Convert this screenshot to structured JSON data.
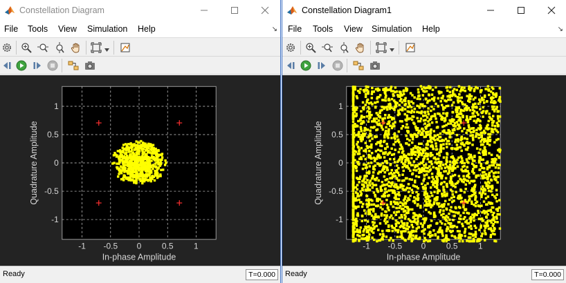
{
  "windows": [
    {
      "title": "Constellation Diagram",
      "menu": [
        "File",
        "Tools",
        "View",
        "Simulation",
        "Help"
      ],
      "status": "Ready",
      "sim_time": "T=0.000",
      "plot": {
        "xlabel": "In-phase Amplitude",
        "ylabel": "Quadrature Amplitude",
        "xticks": [
          "-1",
          "-0.5",
          "0",
          "0.5",
          "1"
        ],
        "yticks": [
          "1",
          "0.5",
          "0",
          "-0.5",
          "-1"
        ]
      }
    },
    {
      "title": "Constellation Diagram1",
      "menu": [
        "File",
        "Tools",
        "View",
        "Simulation",
        "Help"
      ],
      "status": "Ready",
      "sim_time": "T=0.000",
      "plot": {
        "xlabel": "In-phase Amplitude",
        "ylabel": "Quadrature Amplitude",
        "xticks": [
          "-1",
          "-0.5",
          "0",
          "0.5",
          "1"
        ],
        "yticks": [
          "1",
          "0.5",
          "0",
          "-0.5",
          "-1"
        ]
      }
    }
  ],
  "colors": {
    "plot_background": "#232323",
    "axes_background": "#000000",
    "grid": "#d8d8d8",
    "signal": "#ffff00",
    "reference_marker": "#ff3030"
  },
  "icons": {
    "app": "matlab-logo-icon",
    "window_controls": [
      "minimize-icon",
      "maximize-icon",
      "close-icon"
    ],
    "toolbar_row1": [
      "settings-gear-icon",
      "zoom-in-icon",
      "zoom-x-icon",
      "zoom-y-icon",
      "pan-hand-icon",
      "scale-axes-icon",
      "style-icon"
    ],
    "toolbar_row2": [
      "step-back-icon",
      "run-icon",
      "step-forward-icon",
      "stop-icon",
      "highlight-simulink-block-icon",
      "snapshot-icon"
    ]
  },
  "chart_data": [
    {
      "type": "scatter",
      "title": "",
      "xlabel": "In-phase Amplitude",
      "ylabel": "Quadrature Amplitude",
      "xlim": [
        -1.35,
        1.35
      ],
      "ylim": [
        -1.35,
        1.35
      ],
      "grid": true,
      "reference_points": [
        [
          -0.707,
          0.707
        ],
        [
          0.707,
          0.707
        ],
        [
          -0.707,
          -0.707
        ],
        [
          0.707,
          -0.707
        ]
      ],
      "signal": {
        "shape": "concentric rings around origin",
        "ring_radii": [
          0.06,
          0.13,
          0.2,
          0.27,
          0.34
        ],
        "center": [
          0,
          0
        ],
        "max_radius": 0.5
      }
    },
    {
      "type": "scatter",
      "title": "",
      "xlabel": "In-phase Amplitude",
      "ylabel": "Quadrature Amplitude",
      "xlim": [
        -1.35,
        1.35
      ],
      "ylim": [
        -1.35,
        1.35
      ],
      "grid": true,
      "reference_points": [
        [
          -0.707,
          0.707
        ],
        [
          0.707,
          0.707
        ],
        [
          -0.707,
          -0.707
        ],
        [
          0.707,
          -0.707
        ]
      ],
      "signal": {
        "shape": "uniform noise square",
        "x_range": [
          -1.4,
          1.35
        ],
        "y_range": [
          -1.4,
          1.35
        ]
      }
    }
  ]
}
